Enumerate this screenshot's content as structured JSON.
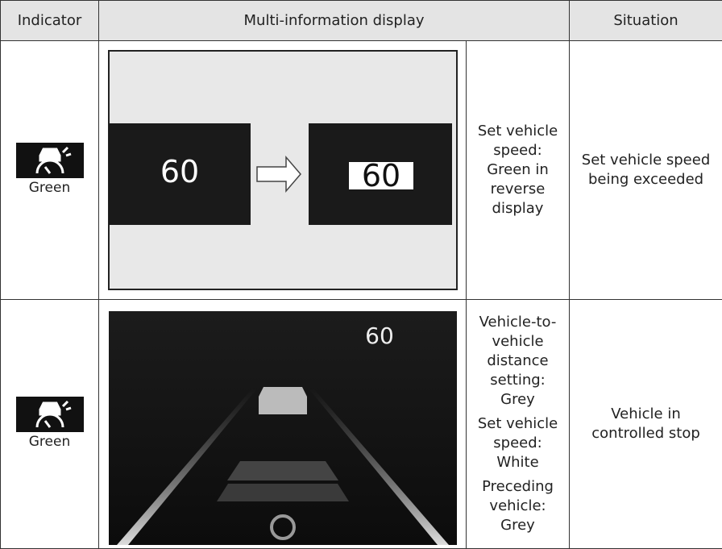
{
  "table": {
    "headers": [
      "Indicator",
      "Multi-information display",
      "Situation"
    ],
    "rows": [
      {
        "indicator": "Green",
        "display_speed": "60",
        "description": [
          "Set vehicle speed: Green in reverse display"
        ],
        "situation": "Set vehicle speed being exceeded"
      },
      {
        "indicator": "Green",
        "display_speed": "60",
        "description": [
          "Vehicle-to-vehicle distance setting: Grey",
          "Set vehicle speed: White",
          "Preceding vehicle: Grey"
        ],
        "situation": "Vehicle in controlled stop"
      }
    ]
  }
}
